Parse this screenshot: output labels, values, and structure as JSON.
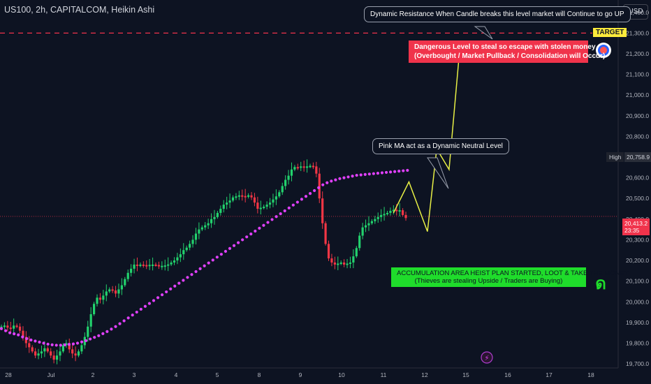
{
  "header": {
    "symbol_line": "US100, 2h, CAPITALCOM, Heikin Ashi",
    "currency_button": "USD"
  },
  "annotations": {
    "resistance_note": "Dynamic Resistance When Candle breaks this level market will Continue to go UP",
    "danger_line1": "Dangerous Level to steal so escape with stolen money",
    "danger_line2": "(Overbought / Market Pullback / Consolidation will Occur)",
    "ma_note": "Pink MA act as a Dynamic Neutral Level",
    "accum_line1": "ACCUMULATION AREA HEIST PLAN STARTED, LOOT & TAKE THE MONEY",
    "accum_line2": "(Thieves are stealing Upside / Traders are Buying)",
    "target_label": "TARGET"
  },
  "price_labels": {
    "high_label": "High",
    "high_value": "20,758.9",
    "current_price": "20,413.2",
    "countdown": "23:35"
  },
  "colors": {
    "background": "#0d1322",
    "bull": "#22d26d",
    "bear": "#f23645",
    "ma": "#e040fb",
    "projection": "#e8f045",
    "target_line": "#f0334b"
  },
  "chart_data": {
    "type": "candlestick",
    "title": "US100, 2h, CAPITALCOM, Heikin Ashi",
    "x_ticks": [
      "28",
      "Jul",
      "2",
      "3",
      "4",
      "5",
      "8",
      "9",
      "10",
      "11",
      "12",
      "15",
      "16",
      "17",
      "18"
    ],
    "y_ticks": [
      "21,400.0",
      "21,300.0",
      "21,200.0",
      "21,100.0",
      "21,000.0",
      "20,900.0",
      "20,800.0",
      "20,700.0",
      "20,600.0",
      "20,500.0",
      "20,400.0",
      "20,300.0",
      "20,200.0",
      "20,100.0",
      "20,000.0",
      "19,900.0",
      "19,800.0",
      "19,700.0"
    ],
    "y_range": [
      19680,
      21460
    ],
    "target_level": 21300,
    "current_price": 20413.2,
    "high": 20758.9,
    "closes": [
      19880,
      19885,
      19875,
      19870,
      19885,
      19880,
      19860,
      19830,
      19800,
      19780,
      19760,
      19740,
      19750,
      19760,
      19775,
      19760,
      19740,
      19720,
      19740,
      19760,
      19790,
      19800,
      19770,
      19750,
      19740,
      19760,
      19790,
      19830,
      19880,
      19940,
      19990,
      20020,
      20010,
      20030,
      20050,
      20060,
      20055,
      20040,
      20060,
      20080,
      20110,
      20140,
      20160,
      20180,
      20175,
      20180,
      20178,
      20176,
      20179,
      20180,
      20178,
      20172,
      20174,
      20176,
      20181,
      20190,
      20200,
      20215,
      20230,
      20250,
      20262,
      20280,
      20300,
      20330,
      20350,
      20360,
      20370,
      20380,
      20400,
      20410,
      20430,
      20450,
      20470,
      20480,
      20490,
      20505,
      20510,
      20515,
      20512,
      20508,
      20515,
      20505,
      20480,
      20450,
      20455,
      20460,
      20470,
      20480,
      20495,
      20510,
      20530,
      20560,
      20590,
      20610,
      20640,
      20652,
      20650,
      20655,
      20652,
      20655,
      20658,
      20655,
      20620,
      20500,
      20380,
      20280,
      20210,
      20190,
      20180,
      20185,
      20190,
      20180,
      20185,
      20190,
      20220,
      20260,
      20320,
      20360,
      20370,
      20380,
      20390,
      20400,
      20410,
      20420,
      20425,
      20430,
      20440,
      20445,
      20440,
      20443,
      20420,
      20405
    ],
    "ma": [
      19870,
      19860,
      19850,
      19845,
      19840,
      19830,
      19822,
      19815,
      19810,
      19805,
      19800,
      19795,
      19792,
      19790,
      19790,
      19792,
      19794,
      19796,
      19800,
      19806,
      19812,
      19820,
      19828,
      19836,
      19846,
      19856,
      19868,
      19880,
      19894,
      19908,
      19922,
      19936,
      19950,
      19964,
      19978,
      19992,
      20006,
      20020,
      20034,
      20048,
      20062,
      20076,
      20090,
      20104,
      20118,
      20132,
      20146,
      20160,
      20174,
      20188,
      20202,
      20216,
      20230,
      20244,
      20258,
      20272,
      20286,
      20300,
      20314,
      20328,
      20342,
      20356,
      20370,
      20384,
      20398,
      20412,
      20426,
      20440,
      20454,
      20468,
      20482,
      20496,
      20510,
      20524,
      20538,
      20552,
      20566,
      20576,
      20584,
      20590,
      20596,
      20600,
      20604,
      20608,
      20612,
      20614,
      20616,
      20618,
      20620,
      20622,
      20624,
      20626,
      20628,
      20630,
      20632,
      20634,
      20636
    ],
    "projection": [
      {
        "t": 127,
        "p": 20430
      },
      {
        "t": 132,
        "p": 20580
      },
      {
        "t": 138,
        "p": 20340
      },
      {
        "t": 141,
        "p": 20740
      },
      {
        "t": 145,
        "p": 20640
      },
      {
        "t": 148.5,
        "p": 21230
      }
    ]
  }
}
